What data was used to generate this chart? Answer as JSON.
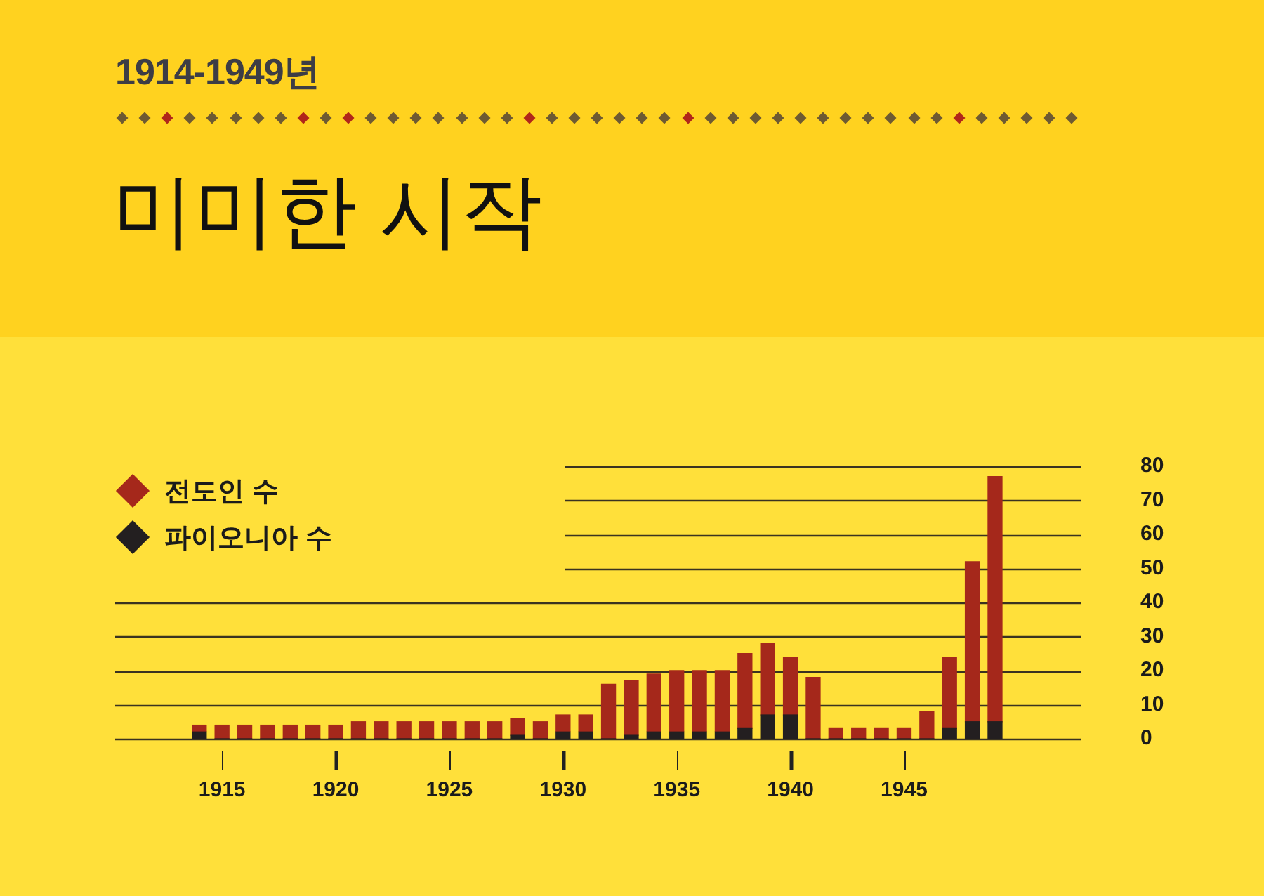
{
  "chart_data": {
    "type": "bar",
    "title": "미미한 시작",
    "subtitle": "1914-1949년",
    "x": [
      1914,
      1915,
      1916,
      1917,
      1918,
      1919,
      1920,
      1921,
      1922,
      1923,
      1924,
      1925,
      1926,
      1927,
      1928,
      1929,
      1930,
      1931,
      1932,
      1933,
      1934,
      1935,
      1936,
      1937,
      1938,
      1939,
      1940,
      1941,
      1942,
      1943,
      1944,
      1945,
      1946,
      1947,
      1948,
      1949
    ],
    "xlim": [
      1910.3,
      1952.8
    ],
    "xticks": [
      1915,
      1920,
      1925,
      1930,
      1935,
      1940,
      1945
    ],
    "series": [
      {
        "name": "파이오니아 수",
        "color": "#231f20",
        "values": [
          2,
          0,
          0,
          0,
          0,
          0,
          0,
          0,
          0,
          0,
          0,
          0,
          0,
          0,
          1,
          0,
          2,
          2,
          0,
          1,
          2,
          2,
          2,
          2,
          3,
          7,
          7,
          0,
          0,
          0,
          0,
          0,
          0,
          3,
          5,
          5
        ]
      },
      {
        "name": "전도인 수",
        "color": "#a5281b",
        "values": [
          2,
          4,
          4,
          4,
          4,
          4,
          4,
          5,
          5,
          5,
          5,
          5,
          5,
          5,
          5,
          5,
          5,
          5,
          16,
          16,
          17,
          18,
          18,
          18,
          22,
          21,
          17,
          18,
          3,
          3,
          3,
          3,
          8,
          21,
          47,
          72
        ]
      }
    ],
    "stacked": true,
    "ylim": [
      0,
      80
    ],
    "yticks": [
      0,
      10,
      20,
      30,
      40,
      50,
      60,
      70,
      80
    ],
    "grid": "y",
    "legend": "top left"
  }
}
